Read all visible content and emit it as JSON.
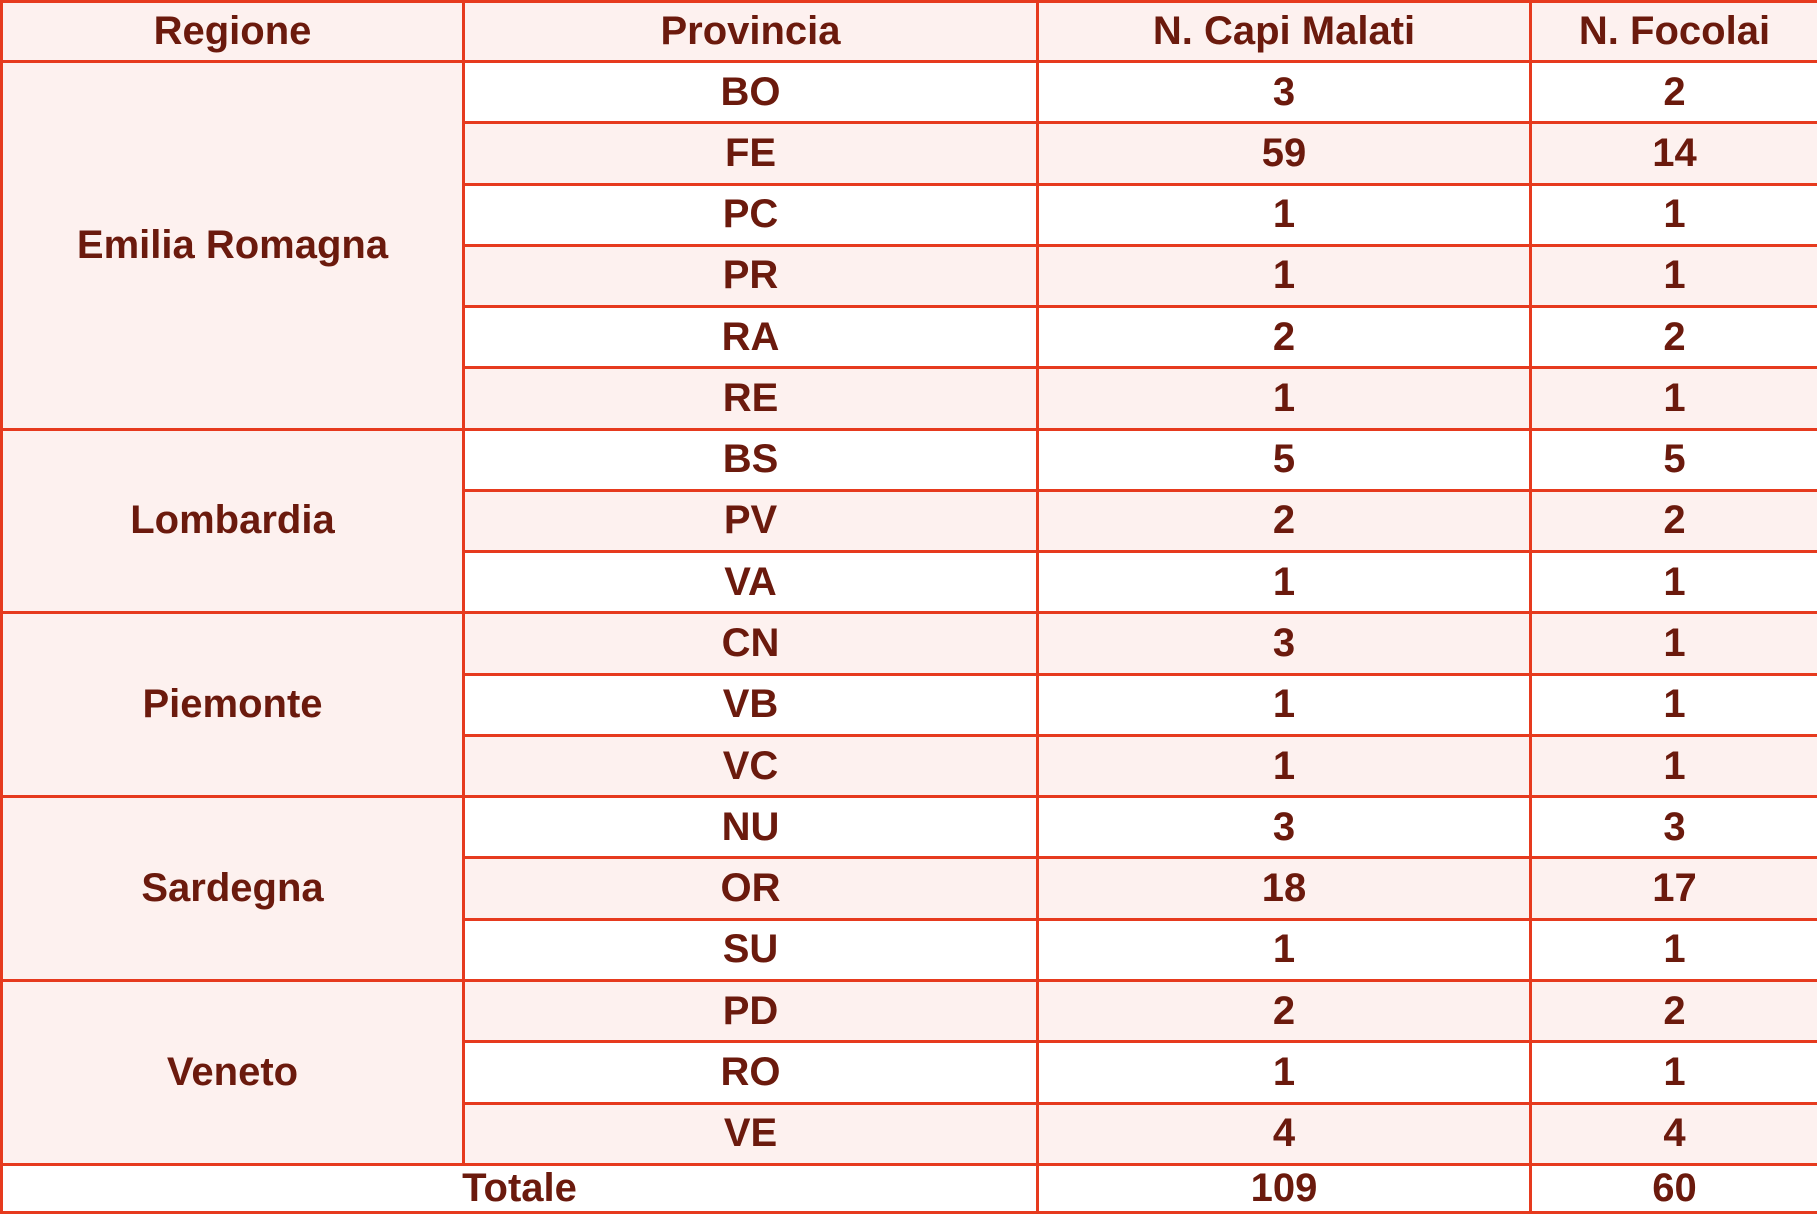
{
  "headers": {
    "regione": "Regione",
    "provincia": "Provincia",
    "capi": "N. Capi Malati",
    "focolai": "N. Focolai"
  },
  "regions": [
    {
      "name": "Emilia Romagna",
      "rows": [
        {
          "prov": "BO",
          "capi": "3",
          "focolai": "2"
        },
        {
          "prov": "FE",
          "capi": "59",
          "focolai": "14"
        },
        {
          "prov": "PC",
          "capi": "1",
          "focolai": "1"
        },
        {
          "prov": "PR",
          "capi": "1",
          "focolai": "1"
        },
        {
          "prov": "RA",
          "capi": "2",
          "focolai": "2"
        },
        {
          "prov": "RE",
          "capi": "1",
          "focolai": "1"
        }
      ]
    },
    {
      "name": "Lombardia",
      "rows": [
        {
          "prov": "BS",
          "capi": "5",
          "focolai": "5"
        },
        {
          "prov": "PV",
          "capi": "2",
          "focolai": "2"
        },
        {
          "prov": "VA",
          "capi": "1",
          "focolai": "1"
        }
      ]
    },
    {
      "name": "Piemonte",
      "rows": [
        {
          "prov": "CN",
          "capi": "3",
          "focolai": "1"
        },
        {
          "prov": "VB",
          "capi": "1",
          "focolai": "1"
        },
        {
          "prov": "VC",
          "capi": "1",
          "focolai": "1"
        }
      ]
    },
    {
      "name": "Sardegna",
      "rows": [
        {
          "prov": "NU",
          "capi": "3",
          "focolai": "3"
        },
        {
          "prov": "OR",
          "capi": "18",
          "focolai": "17"
        },
        {
          "prov": "SU",
          "capi": "1",
          "focolai": "1"
        }
      ]
    },
    {
      "name": "Veneto",
      "rows": [
        {
          "prov": "PD",
          "capi": "2",
          "focolai": "2"
        },
        {
          "prov": "RO",
          "capi": "1",
          "focolai": "1"
        },
        {
          "prov": "VE",
          "capi": "4",
          "focolai": "4"
        }
      ]
    }
  ],
  "total": {
    "label": "Totale",
    "capi": "109",
    "focolai": "60"
  },
  "colors": {
    "border": "#e63a1e",
    "text": "#6b1a0d",
    "band": "#fdf1ef"
  }
}
